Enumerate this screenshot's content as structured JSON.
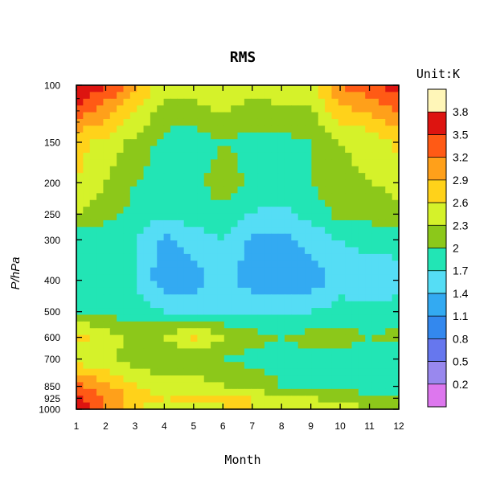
{
  "chart_data": {
    "type": "heatmap",
    "title": "RMS",
    "xlabel": "Month",
    "ylabel": "P/hPa",
    "unit_label": "Unit:K",
    "x_ticks": [
      "1",
      "2",
      "3",
      "4",
      "5",
      "6",
      "7",
      "8",
      "9",
      "10",
      "11",
      "12"
    ],
    "y_ticks": [
      {
        "label": "100",
        "value": 100
      },
      {
        "label": "150",
        "value": 150
      },
      {
        "label": "200",
        "value": 200
      },
      {
        "label": "250",
        "value": 250
      },
      {
        "label": "300",
        "value": 300
      },
      {
        "label": "400",
        "value": 400
      },
      {
        "label": "500",
        "value": 500
      },
      {
        "label": "600",
        "value": 600
      },
      {
        "label": "700",
        "value": 700
      },
      {
        "label": "850",
        "value": 850
      },
      {
        "label": "925",
        "value": 925
      },
      {
        "label": "1000",
        "value": 1000
      }
    ],
    "y_scale": "log",
    "ylim": [
      1000,
      100
    ],
    "xlim": [
      1,
      12
    ],
    "colorbar": {
      "levels": [
        0.2,
        0.5,
        0.8,
        1.1,
        1.4,
        1.7,
        2,
        2.3,
        2.6,
        2.9,
        3.2,
        3.5,
        3.8
      ],
      "level_labels": [
        "0.2",
        "0.5",
        "0.8",
        "1.1",
        "1.4",
        "1.7",
        "2",
        "2.3",
        "2.6",
        "2.9",
        "3.2",
        "3.5",
        "3.8"
      ],
      "colors": [
        "#dd77ee",
        "#9988ee",
        "#6677ee",
        "#3388ee",
        "#33aaf2",
        "#55ddf5",
        "#22e5b5",
        "#8cc81a",
        "#d5f22a",
        "#ffd21a",
        "#ffa01a",
        "#ff5a15",
        "#dd1410",
        "#fff6b8"
      ]
    },
    "pressure_levels": [
      100,
      150,
      200,
      250,
      300,
      400,
      500,
      600,
      700,
      850,
      925,
      1000
    ],
    "months": [
      1,
      2,
      3,
      4,
      5,
      6,
      7,
      8,
      9,
      10,
      11,
      12
    ],
    "values": [
      [
        3.9,
        3.5,
        3.0,
        2.4,
        2.5,
        2.6,
        2.4,
        2.5,
        2.5,
        3.2,
        3.4,
        3.7
      ],
      [
        2.7,
        2.5,
        2.2,
        1.9,
        1.8,
        2.0,
        1.9,
        1.9,
        2.0,
        2.3,
        2.4,
        2.7
      ],
      [
        2.6,
        2.3,
        2.0,
        1.9,
        1.9,
        2.2,
        1.9,
        1.9,
        2.0,
        2.2,
        2.3,
        2.4
      ],
      [
        2.3,
        2.1,
        1.9,
        1.8,
        1.8,
        1.9,
        1.7,
        1.6,
        1.8,
        2.1,
        2.1,
        2.2
      ],
      [
        1.8,
        1.8,
        1.7,
        1.3,
        1.6,
        1.7,
        1.3,
        1.3,
        1.5,
        1.7,
        1.8,
        1.8
      ],
      [
        1.9,
        1.8,
        1.7,
        1.2,
        1.2,
        1.6,
        1.2,
        1.2,
        1.2,
        1.6,
        1.5,
        1.6
      ],
      [
        2.0,
        1.9,
        1.8,
        1.7,
        1.7,
        1.7,
        1.7,
        1.7,
        1.7,
        1.8,
        1.8,
        1.8
      ],
      [
        2.7,
        2.5,
        2.2,
        2.3,
        2.7,
        2.3,
        2.1,
        2.0,
        2.1,
        2.2,
        2.0,
        2.1
      ],
      [
        2.4,
        2.4,
        2.1,
        2.1,
        2.0,
        2.0,
        1.9,
        1.9,
        1.9,
        1.8,
        1.8,
        1.8
      ],
      [
        3.3,
        3.0,
        2.6,
        2.4,
        2.5,
        2.3,
        2.2,
        2.0,
        2.0,
        2.0,
        1.8,
        1.8
      ],
      [
        3.6,
        3.2,
        2.8,
        2.6,
        2.7,
        2.6,
        2.6,
        2.4,
        2.3,
        2.2,
        2.1,
        2.0
      ],
      [
        3.8,
        3.1,
        2.6,
        2.3,
        2.5,
        2.6,
        2.6,
        2.6,
        2.6,
        2.5,
        2.3,
        2.3
      ]
    ]
  }
}
